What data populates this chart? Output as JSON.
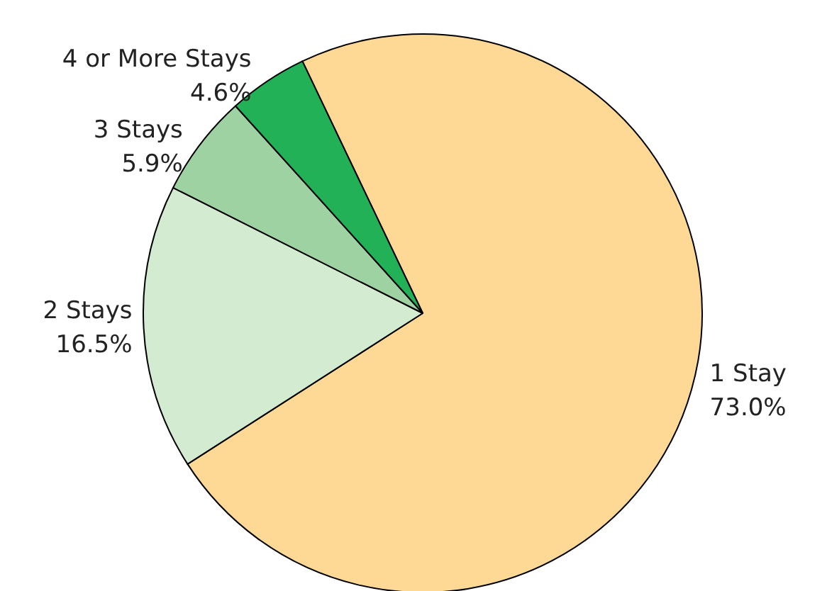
{
  "chart_data": {
    "type": "pie",
    "categories": [
      "1 Stay",
      "2 Stays",
      "3 Stays",
      "4 or More Stays"
    ],
    "values": [
      73.0,
      16.5,
      5.9,
      4.6
    ],
    "value_labels": [
      "73.0%",
      "16.5%",
      "5.9%",
      "4.6%"
    ],
    "colors": [
      "#fdd995",
      "#d3ebd0",
      "#9ed2a2",
      "#22b157"
    ]
  }
}
